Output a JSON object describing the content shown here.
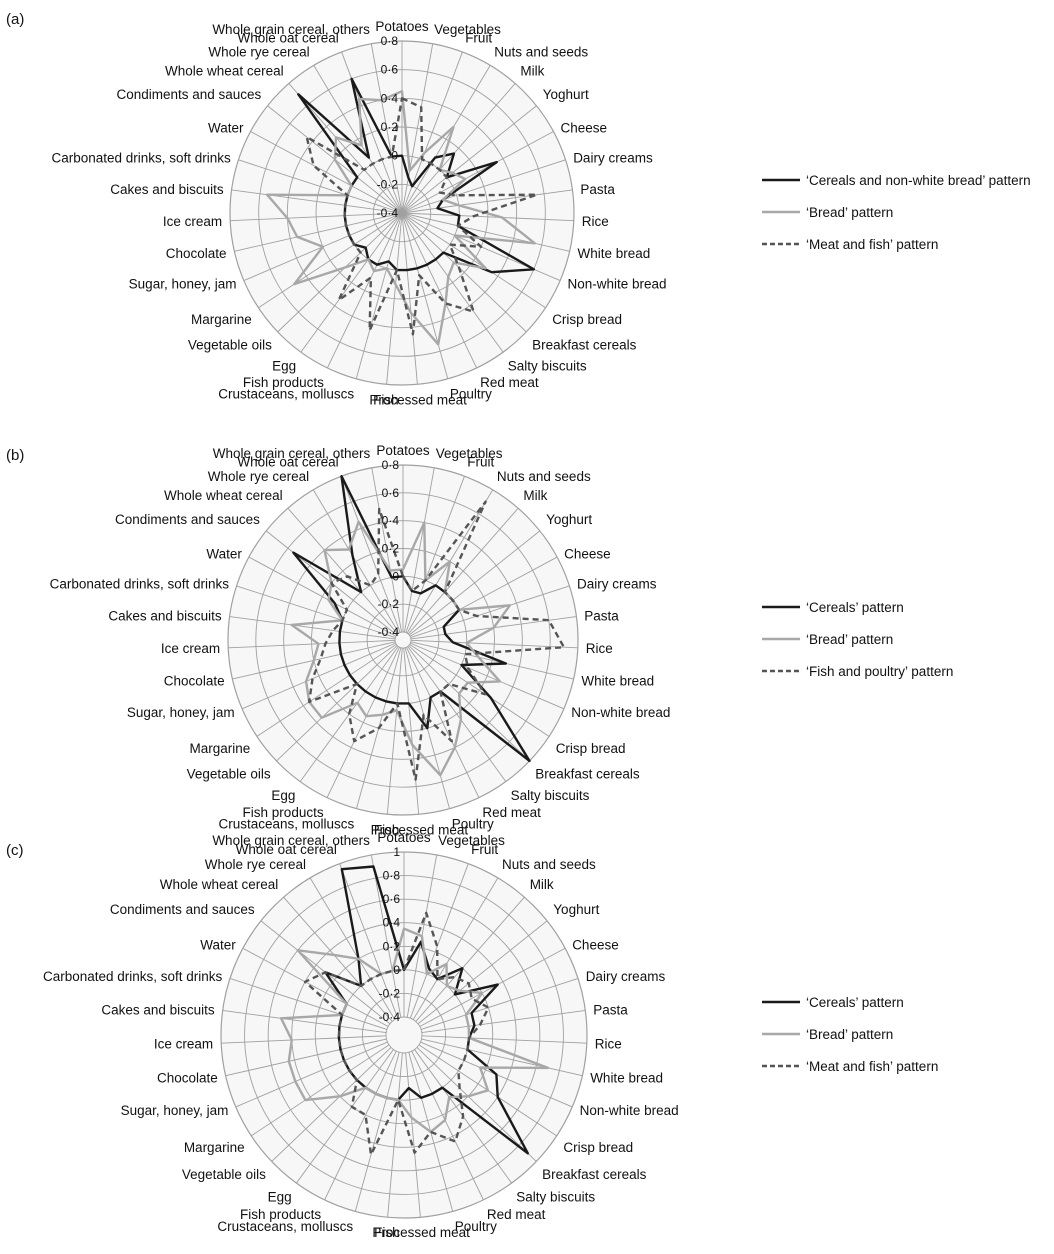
{
  "figure": {
    "categories": [
      "Potatoes",
      "Vegetables",
      "Fruit",
      "Nuts and seeds",
      "Milk",
      "Yoghurt",
      "Cheese",
      "Dairy creams",
      "Pasta",
      "Rice",
      "White bread",
      "Non-white bread",
      "Crisp bread",
      "Breakfast cereals",
      "Salty biscuits",
      "Red meat",
      "Poultry",
      "Processed meat",
      "Fish",
      "Crustaceans, molluscs",
      "Fish products",
      "Egg",
      "Vegetable oils",
      "Margarine",
      "Sugar, honey, jam",
      "Chocolate",
      "Ice cream",
      "Cakes and biscuits",
      "Carbonated drinks, soft drinks",
      "Water",
      "Condiments and sauces",
      "Whole wheat cereal",
      "Whole rye cereal",
      "Whole oat cereal",
      "Whole grain cereal, others"
    ],
    "colors": {
      "black": "#1a1a1a",
      "gray": "#a8a8a8",
      "dashed": "#555555",
      "grid": "#a0a0a0",
      "bg": "#f7f7f7"
    }
  },
  "chart_data": [
    {
      "type": "radar",
      "panel_label": "(a)",
      "rlim": [
        -0.4,
        0.8
      ],
      "ticks": [
        "-0·4",
        "-0·2",
        "0",
        "0·2",
        "0·4",
        "0·6",
        "0·8"
      ],
      "legend_position": "right",
      "series": [
        {
          "name": "‘Cereals and non-white bread’ pattern",
          "style": "black",
          "values": [
            0.0,
            -0.15,
            -0.2,
            0.05,
            0.15,
            0.0,
            0.35,
            -0.1,
            -0.15,
            0.0,
            0.0,
            0.6,
            0.35,
            0.0,
            0.0,
            0.0,
            0.0,
            0.0,
            0.0,
            -0.05,
            0.0,
            0.0,
            -0.05,
            0.0,
            0.0,
            0.0,
            0.0,
            0.0,
            0.0,
            0.0,
            0.0,
            0.7,
            0.05,
            0.6,
            0.0
          ]
        },
        {
          "name": "‘Bread’ pattern",
          "style": "gray",
          "values": [
            0.45,
            -0.1,
            0.05,
            0.3,
            0.0,
            0.05,
            0.1,
            -0.1,
            0.0,
            0.3,
            0.55,
            0.0,
            0.3,
            0.1,
            0.15,
            0.3,
            0.55,
            0.3,
            0.1,
            0.0,
            0.05,
            0.0,
            0.15,
            0.5,
            0.2,
            0.35,
            0.4,
            0.55,
            0.0,
            0.0,
            0.2,
            0.3,
            0.15,
            0.45,
            0.4
          ]
        },
        {
          "name": "‘Meat and fish’ pattern",
          "style": "dashed",
          "values": [
            0.4,
            0.35,
            0.0,
            0.0,
            0.0,
            0.0,
            -0.1,
            0.0,
            0.55,
            0.1,
            0.0,
            0.2,
            0.0,
            0.15,
            0.45,
            0.3,
            0.05,
            0.45,
            0.0,
            0.45,
            0.1,
            0.35,
            0.0,
            0.0,
            0.0,
            0.0,
            0.0,
            0.0,
            0.0,
            0.3,
            0.45,
            0.0,
            0.0,
            0.0,
            0.0
          ]
        }
      ]
    },
    {
      "type": "radar",
      "panel_label": "(b)",
      "rlim": [
        -0.4,
        0.8
      ],
      "ticks": [
        "-0·4",
        "-0·2",
        "0",
        "0·2",
        "0·4",
        "0·6",
        "0·8"
      ],
      "legend_position": "right",
      "series": [
        {
          "name": "‘Cereals’ pattern",
          "style": "black",
          "values": [
            0.0,
            -0.1,
            -0.1,
            0.0,
            0.0,
            0.0,
            0.0,
            -0.15,
            -0.15,
            -0.1,
            0.3,
            0.0,
            0.3,
            0.8,
            0.0,
            0.0,
            0.2,
            0.0,
            0.0,
            0.0,
            0.0,
            0.0,
            0.0,
            0.0,
            0.0,
            0.0,
            0.0,
            0.0,
            0.0,
            0.1,
            0.55,
            0.0,
            0.25,
            0.8,
            0.0
          ]
        },
        {
          "name": "‘Bread’ pattern",
          "style": "gray",
          "values": [
            0.05,
            0.4,
            0.0,
            0.2,
            0.0,
            0.0,
            0.0,
            0.35,
            0.2,
            0.0,
            0.1,
            0.3,
            0.1,
            0.1,
            0.25,
            0.4,
            0.55,
            0.3,
            0.05,
            0.1,
            0.15,
            0.1,
            0.35,
            0.35,
            0.3,
            0.2,
            0.15,
            0.35,
            0.0,
            0.15,
            0.2,
            0.4,
            0.3,
            0.45,
            0.05
          ]
        },
        {
          "name": "‘Fish and poultry’ pattern",
          "style": "dashed",
          "values": [
            0.0,
            -0.1,
            0.0,
            0.7,
            0.0,
            0.0,
            0.0,
            0.1,
            0.6,
            0.7,
            0.0,
            0.05,
            0.25,
            0.0,
            0.0,
            0.35,
            0.1,
            0.55,
            0.0,
            0.2,
            0.35,
            0.2,
            0.0,
            0.35,
            0.25,
            0.15,
            0.1,
            0.05,
            0.0,
            0.0,
            0.2,
            0.15,
            0.0,
            0.05,
            0.5
          ]
        }
      ]
    },
    {
      "type": "radar",
      "panel_label": "(c)",
      "rlim": [
        -0.4,
        1
      ],
      "ticks": [
        "-0·4",
        "-0·2",
        "0",
        "0·2",
        "0·4",
        "0·6",
        "0·8",
        "1"
      ],
      "legend_position": "right",
      "series": [
        {
          "name": "‘Cereals’ pattern",
          "style": "black",
          "values": [
            0.0,
            0.25,
            0.05,
            0.0,
            0.2,
            0.0,
            0.35,
            0.05,
            0.05,
            0.0,
            0.0,
            0.3,
            0.4,
            0.9,
            0.0,
            0.0,
            0.0,
            -0.1,
            0.0,
            0.0,
            0.0,
            0.0,
            0.0,
            0.0,
            0.0,
            0.0,
            0.0,
            0.0,
            0.0,
            0.0,
            0.3,
            0.0,
            0.2,
            0.95,
            0.9
          ]
        },
        {
          "name": "‘Bread’ pattern",
          "style": "gray",
          "values": [
            0.35,
            0.3,
            0.0,
            0.15,
            0.0,
            0.05,
            0.2,
            0.0,
            0.0,
            0.0,
            0.7,
            0.15,
            0.3,
            0.2,
            0.1,
            0.25,
            0.3,
            0.15,
            0.0,
            0.0,
            0.0,
            0.0,
            0.2,
            0.45,
            0.45,
            0.45,
            0.4,
            0.5,
            0.0,
            0.0,
            0.6,
            0.35,
            0.2,
            0.0,
            0.0
          ]
        },
        {
          "name": "‘Meat and fish’ pattern",
          "style": "dashed",
          "values": [
            0.0,
            0.5,
            0.25,
            0.0,
            0.1,
            0.15,
            0.1,
            0.2,
            0.1,
            0.0,
            0.0,
            0.0,
            0.0,
            0.1,
            0.3,
            0.45,
            0.3,
            0.45,
            0.0,
            0.5,
            0.2,
            0.2,
            0.0,
            0.0,
            0.0,
            0.0,
            0.0,
            0.0,
            0.0,
            0.4,
            0.3,
            0.0,
            0.0,
            0.0,
            0.0
          ]
        }
      ]
    }
  ]
}
